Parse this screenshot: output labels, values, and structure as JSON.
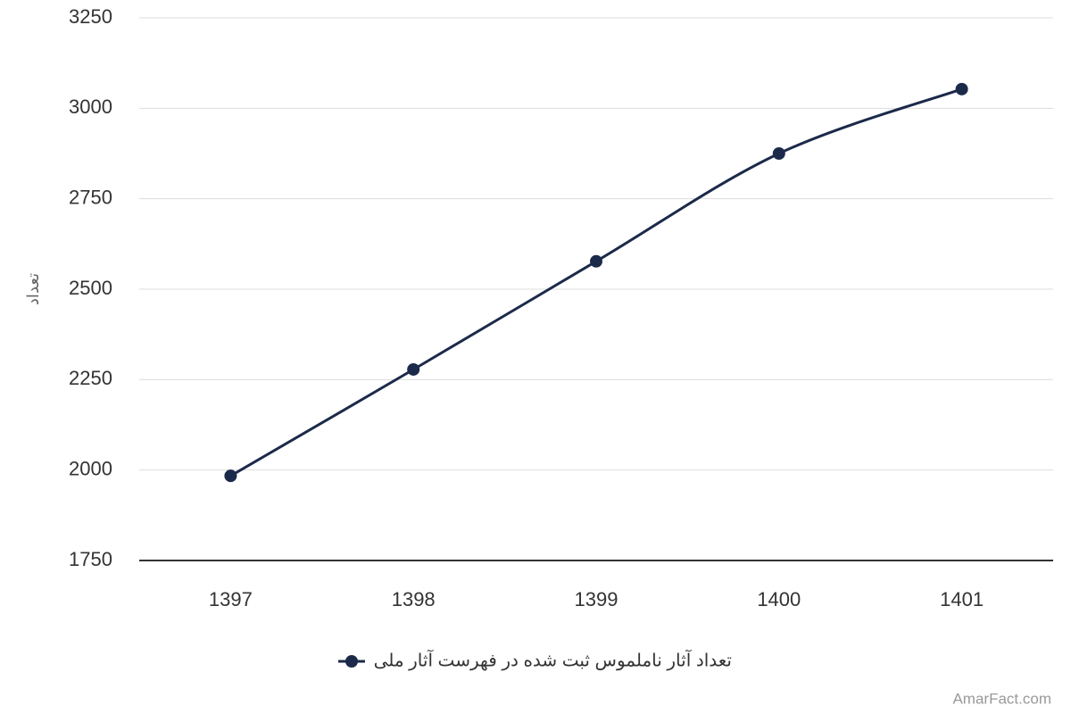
{
  "chart_data": {
    "type": "line",
    "y_label": "تعداد",
    "categories": [
      "1397",
      "1398",
      "1399",
      "1400",
      "1401"
    ],
    "series": [
      {
        "name": "تعداد آثار ناملموس ثبت شده در فهرست آثار ملی",
        "color": "#1b2a4a",
        "values": [
          1984,
          2278,
          2577,
          2875,
          3053
        ]
      }
    ],
    "ylim": [
      1750,
      3250
    ],
    "yticks": [
      1750,
      2000,
      2250,
      2500,
      2750,
      3000,
      3250
    ],
    "grid": true,
    "smooth": true,
    "legend": "bottom",
    "credit": "AmarFact.com"
  }
}
